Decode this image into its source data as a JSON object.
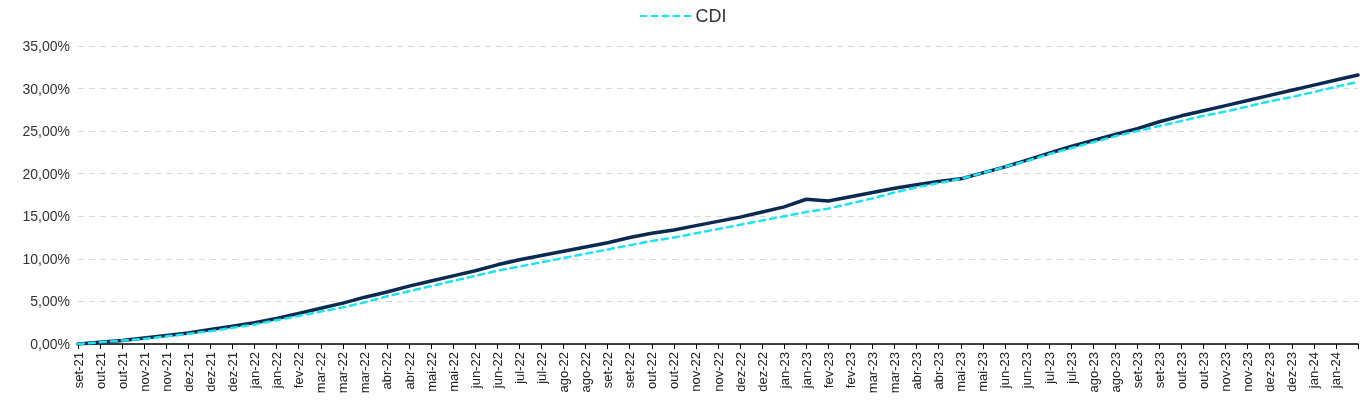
{
  "chart_data": {
    "type": "line",
    "categories": [
      "set-21",
      "out-21",
      "out-21",
      "nov-21",
      "nov-21",
      "dez-21",
      "dez-21",
      "dez-21",
      "jan-22",
      "jan-22",
      "fev-22",
      "mar-22",
      "mar-22",
      "mar-22",
      "abr-22",
      "abr-22",
      "mai-22",
      "mai-22",
      "jun-22",
      "jun-22",
      "jul-22",
      "jul-22",
      "ago-22",
      "ago-22",
      "set-22",
      "set-22",
      "out-22",
      "out-22",
      "nov-22",
      "nov-22",
      "dez-22",
      "dez-22",
      "jan-23",
      "jan-23",
      "fev-23",
      "fev-23",
      "mar-23",
      "mar-23",
      "abr-23",
      "abr-23",
      "mai-23",
      "mai-23",
      "jun-23",
      "jun-23",
      "jul-23",
      "jul-23",
      "ago-23",
      "ago-23",
      "set-23",
      "set-23",
      "out-23",
      "out-23",
      "nov-23",
      "nov-23",
      "dez-23",
      "dez-23",
      "jan-24",
      "jan-24",
      null
    ],
    "series": [
      {
        "color": "#0b2a4f",
        "line_style": "solid",
        "values": [
          0.0,
          0.2,
          0.4,
          0.7,
          1.0,
          1.3,
          1.7,
          2.1,
          2.5,
          3.0,
          3.6,
          4.2,
          4.8,
          5.5,
          6.1,
          6.8,
          7.4,
          8.0,
          8.6,
          9.3,
          9.9,
          10.4,
          10.9,
          11.4,
          11.9,
          12.5,
          13.0,
          13.4,
          13.9,
          14.4,
          14.9,
          15.5,
          16.1,
          17.0,
          16.8,
          17.3,
          17.8,
          18.3,
          18.7,
          19.1,
          19.4,
          20.1,
          20.8,
          21.6,
          22.4,
          23.2,
          23.9,
          24.6,
          25.3,
          26.1,
          26.8,
          27.4,
          28.0,
          28.6,
          29.2,
          29.8,
          30.4,
          31.0,
          31.6
        ]
      },
      {
        "name": "CDI",
        "color": "#1ee3ef",
        "line_style": "dashed",
        "values": [
          0.0,
          0.2,
          0.4,
          0.6,
          0.9,
          1.2,
          1.5,
          1.9,
          2.3,
          2.8,
          3.3,
          3.8,
          4.3,
          4.9,
          5.6,
          6.2,
          6.8,
          7.4,
          8.0,
          8.6,
          9.1,
          9.6,
          10.1,
          10.6,
          11.1,
          11.6,
          12.1,
          12.5,
          13.0,
          13.5,
          14.0,
          14.5,
          15.0,
          15.5,
          15.9,
          16.5,
          17.1,
          17.8,
          18.4,
          18.9,
          19.4,
          20.1,
          20.8,
          21.5,
          22.3,
          23.0,
          23.7,
          24.4,
          25.0,
          25.6,
          26.2,
          26.8,
          27.3,
          27.9,
          28.5,
          29.0,
          29.6,
          30.2,
          30.8
        ]
      }
    ],
    "ylim": [
      0,
      35
    ],
    "yticks": [
      {
        "value": 0,
        "label": "0,00%"
      },
      {
        "value": 5,
        "label": "5,00%"
      },
      {
        "value": 10,
        "label": "10,00%"
      },
      {
        "value": 15,
        "label": "15,00%"
      },
      {
        "value": 20,
        "label": "20,00%"
      },
      {
        "value": 25,
        "label": "25,00%"
      },
      {
        "value": 30,
        "label": "30,00%"
      },
      {
        "value": 35,
        "label": "35,00%"
      }
    ],
    "grid": "y",
    "legend": "top",
    "marker": "none"
  }
}
